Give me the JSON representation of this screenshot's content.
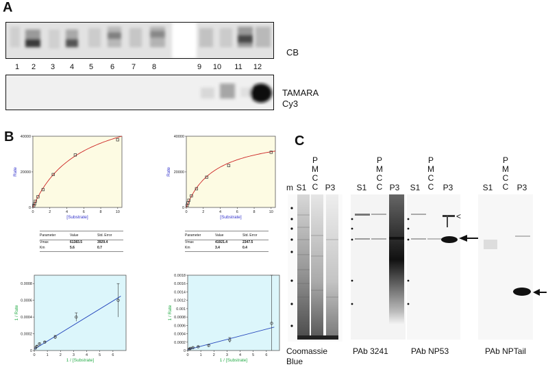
{
  "panel_a": {
    "label": "A",
    "lanes": [
      "1",
      "2",
      "3",
      "4",
      "5",
      "6",
      "7",
      "8",
      "9",
      "10",
      "11",
      "12"
    ],
    "top_gel_label": "CB",
    "bottom_gel_label_1": "TAMARA",
    "bottom_gel_label_2": "Cy3"
  },
  "panel_b": {
    "label": "B",
    "table_headers": [
      "Parameter",
      "Value",
      "Std. Error"
    ],
    "left_table": [
      [
        "Vmax",
        "61383.5",
        "3929.4"
      ],
      [
        "Km",
        "5.6",
        "0.7"
      ]
    ],
    "right_table": [
      [
        "Vmax",
        "41921.4",
        "2347.5"
      ],
      [
        "Km",
        "3.4",
        "0.4"
      ]
    ],
    "mm_ylabel": "Rate",
    "mm_xlabel": "[Substrate]",
    "lb_ylabel": "1 / Rate",
    "lb_xlabel": "1 / [Substrate]"
  },
  "panel_c": {
    "label": "C",
    "marker_label": "m",
    "col_s1": "S1",
    "col_p3": "P3",
    "pmcc_letters": [
      "P",
      "M",
      "C",
      "C"
    ],
    "blot_labels": [
      "Coomassie",
      "Blue",
      "PAb 3241",
      "PAb NP53",
      "PAb NPTail"
    ]
  },
  "chart_data": [
    {
      "type": "scatter",
      "panel": "B top-left",
      "title": "",
      "xlabel": "[Substrate]",
      "ylabel": "Rate",
      "xlim": [
        0,
        10.5
      ],
      "ylim": [
        0,
        40000
      ],
      "xticks": [
        0,
        2,
        4,
        6,
        8,
        10
      ],
      "yticks": [
        0,
        20000,
        40000
      ],
      "x": [
        0.1,
        0.2,
        0.3,
        0.6,
        1.2,
        2.4,
        5,
        10
      ],
      "y": [
        1000,
        2000,
        3500,
        6000,
        10000,
        18500,
        29500,
        38000
      ],
      "fit": {
        "Vmax": 61383.5,
        "Km": 5.6
      }
    },
    {
      "type": "scatter",
      "panel": "B top-right",
      "title": "",
      "xlabel": "[Substrate]",
      "ylabel": "Rate",
      "xlim": [
        0,
        10.5
      ],
      "ylim": [
        0,
        40000
      ],
      "xticks": [
        0,
        2,
        4,
        6,
        8,
        10
      ],
      "yticks": [
        0,
        20000,
        40000
      ],
      "x": [
        0.1,
        0.2,
        0.3,
        0.6,
        1.2,
        2.4,
        5,
        10
      ],
      "y": [
        1200,
        2500,
        4000,
        6500,
        10500,
        17000,
        23500,
        31000
      ],
      "fit": {
        "Vmax": 41921.4,
        "Km": 3.4
      }
    },
    {
      "type": "scatter",
      "panel": "B bottom-left",
      "title": "",
      "xlabel": "1 / [Substrate]",
      "ylabel": "1 / Rate",
      "xlim": [
        0,
        7
      ],
      "ylim": [
        0,
        0.0009
      ],
      "xticks": [
        0,
        1,
        2,
        3,
        4,
        5,
        6
      ],
      "yticks": [
        0,
        0.0002,
        0.0004,
        0.0006,
        0.0008
      ],
      "x": [
        0.1,
        0.2,
        0.4,
        0.8,
        1.6,
        3.2,
        6.4
      ],
      "y": [
        3e-05,
        5e-05,
        8e-05,
        0.0001,
        0.00016,
        0.0004,
        0.0006
      ],
      "err": [
        1e-05,
        1e-05,
        1e-05,
        1e-05,
        2e-05,
        5e-05,
        0.0002
      ],
      "fit_line": [
        [
          0,
          1.6e-05
        ],
        [
          6.6,
          0.00065
        ]
      ]
    },
    {
      "type": "scatter",
      "panel": "B bottom-right",
      "title": "",
      "xlabel": "1 / [Substrate]",
      "ylabel": "1 / Rate",
      "xlim": [
        0,
        7
      ],
      "ylim": [
        0,
        0.0018
      ],
      "xticks": [
        0,
        1,
        2,
        3,
        4,
        5,
        6
      ],
      "yticks": [
        0,
        0.0002,
        0.0004,
        0.0006,
        0.0008,
        0.001,
        0.0012,
        0.0014,
        0.0016,
        0.0018
      ],
      "x": [
        0.1,
        0.2,
        0.4,
        0.8,
        1.6,
        3.2,
        6.4
      ],
      "y": [
        3e-05,
        5e-05,
        7e-05,
        9e-05,
        0.00012,
        0.00025,
        0.00065
      ],
      "err": [
        1e-05,
        1e-05,
        1e-05,
        1e-05,
        2e-05,
        6e-05,
        0.00115
      ],
      "fit_line": [
        [
          0,
          2e-05
        ],
        [
          6.6,
          0.00056
        ]
      ]
    }
  ]
}
